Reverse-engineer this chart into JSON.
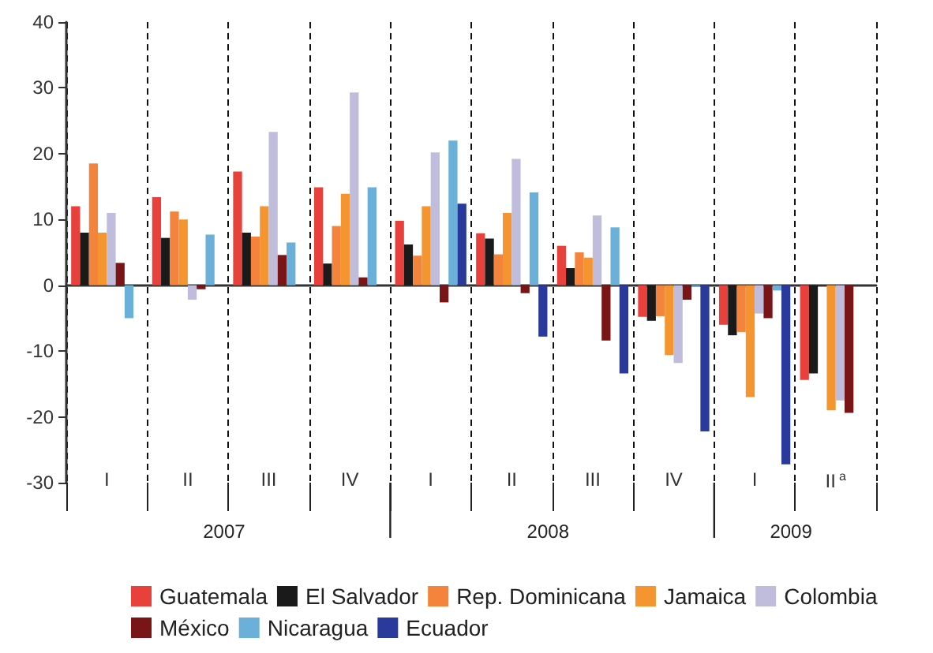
{
  "chart_data": {
    "type": "bar",
    "categories": [
      "I",
      "II",
      "III",
      "IV",
      "I",
      "II",
      "III",
      "IV",
      "I",
      "II$^{a}$"
    ],
    "annotations": [
      "2007",
      "2008",
      "2009"
    ],
    "ylim": [
      -30,
      40
    ],
    "yticks": [
      -30,
      -20,
      -10,
      0,
      10,
      20,
      30,
      40
    ],
    "grid": "x",
    "legend": "bottom",
    "series": [
      {
        "name": "Guatemala",
        "color": "#e8403a",
        "values": [
          12,
          13.4,
          17.3,
          14.9,
          9.8,
          7.9,
          6,
          -4.8,
          -6,
          -14.4
        ]
      },
      {
        "name": "El Salvador",
        "color": "#1a1a1a",
        "values": [
          8,
          7.2,
          8,
          3.3,
          6.2,
          7.1,
          2.6,
          -5.4,
          -7.6,
          -13.4
        ]
      },
      {
        "name": "Rep. Dominicana",
        "color": "#f4843c",
        "values": [
          18.5,
          11.2,
          7.4,
          9,
          4.5,
          4.7,
          5,
          -4.7,
          -7.1,
          null
        ]
      },
      {
        "name": "Jamaica",
        "color": "#f4952f",
        "values": [
          8,
          10,
          12,
          13.9,
          12,
          11,
          4.2,
          -10.6,
          -17,
          -19
        ]
      },
      {
        "name": "Colombia",
        "color": "#c0bcdc",
        "values": [
          11,
          -2.2,
          23.3,
          29.3,
          20.2,
          19.2,
          10.6,
          -11.8,
          -4.3,
          -17.5
        ]
      },
      {
        "name": "México",
        "color": "#7a1517",
        "values": [
          3.4,
          -0.6,
          4.6,
          1.2,
          -2.6,
          -1.2,
          -8.4,
          -2.2,
          -5,
          -19.4
        ]
      },
      {
        "name": "Nicaragua",
        "color": "#6ab0d8",
        "values": [
          -5,
          7.7,
          6.5,
          14.9,
          22,
          14.1,
          8.8,
          -0.2,
          -0.8,
          null
        ]
      },
      {
        "name": "Ecuador",
        "color": "#2a3a9c",
        "values": [
          null,
          null,
          null,
          null,
          12.4,
          -7.8,
          -13.4,
          -22.2,
          -27.2,
          null
        ]
      }
    ]
  }
}
